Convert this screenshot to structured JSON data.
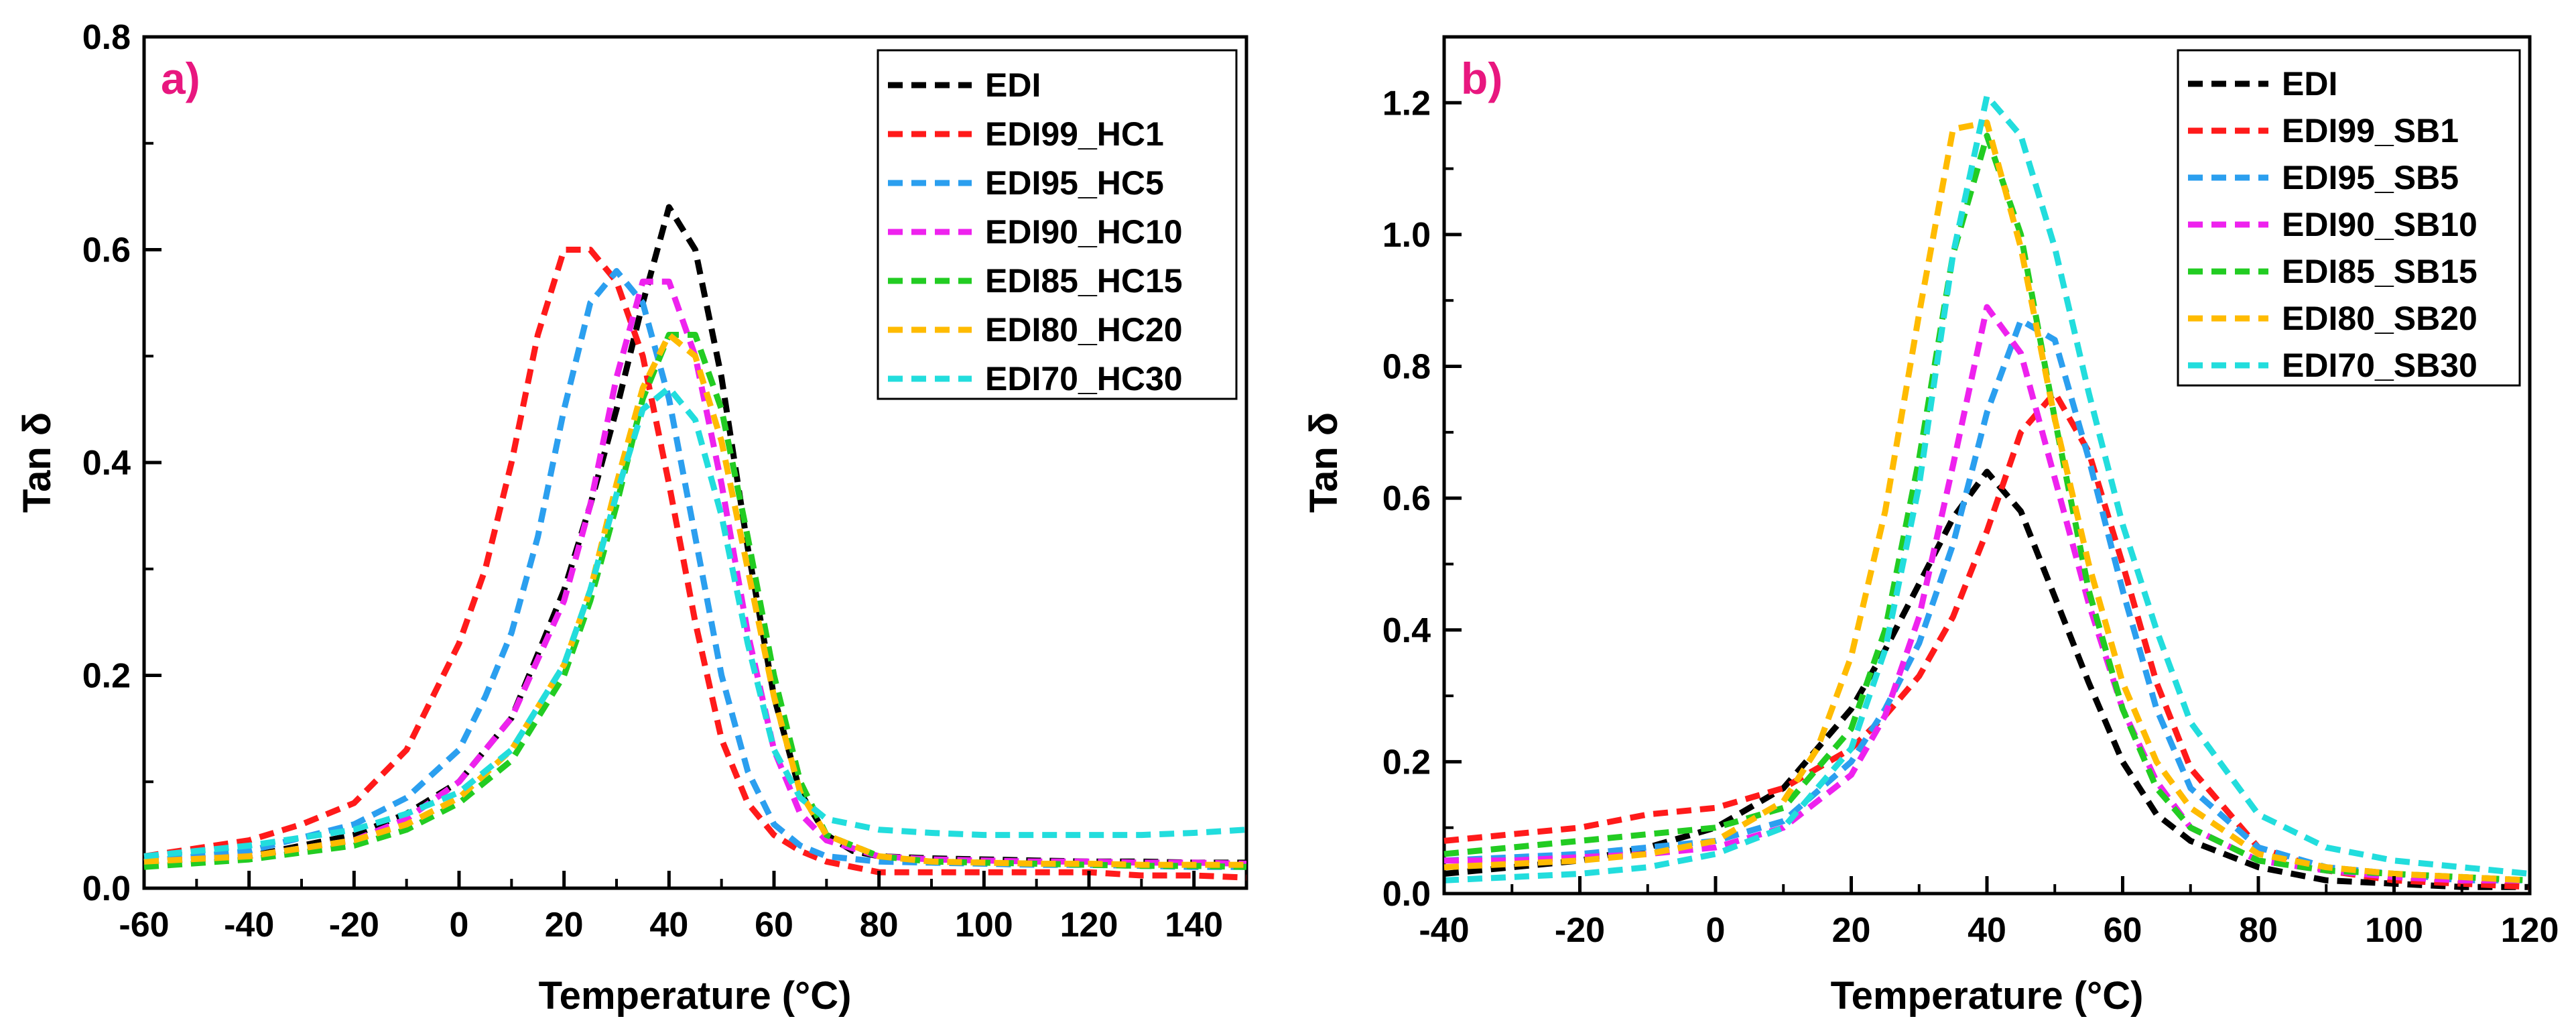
{
  "colors": {
    "panel_label": "#e8177f",
    "EDI": "#000000",
    "red": "#ff1a1a",
    "blue": "#2b9fef",
    "magenta": "#ee22ee",
    "green": "#22cc22",
    "orange": "#ffbb00",
    "cyan": "#22dddd"
  },
  "chart_data": [
    {
      "type": "line",
      "panel": "a)",
      "xlabel": "Temperature (°C)",
      "ylabel": "Tan δ",
      "xlim": [
        -60,
        150
      ],
      "ylim": [
        0,
        0.8
      ],
      "xticks": [
        "-60",
        "-40",
        "-20",
        "0",
        "20",
        "40",
        "60",
        "80",
        "100",
        "120",
        "140"
      ],
      "yticks": [
        "0.0",
        "0.2",
        "0.4",
        "0.6",
        "0.8"
      ],
      "legend_position": "top-right",
      "series": [
        {
          "name": "EDI",
          "color_key": "EDI",
          "x": [
            -60,
            -40,
            -20,
            -10,
            0,
            10,
            20,
            25,
            30,
            35,
            40,
            45,
            50,
            55,
            60,
            65,
            70,
            75,
            80,
            90,
            100,
            110,
            120,
            130,
            140,
            150
          ],
          "y": [
            0.025,
            0.03,
            0.05,
            0.07,
            0.1,
            0.16,
            0.28,
            0.36,
            0.45,
            0.55,
            0.64,
            0.6,
            0.48,
            0.32,
            0.18,
            0.09,
            0.05,
            0.035,
            0.03,
            0.028,
            0.027,
            0.026,
            0.025,
            0.025,
            0.024,
            0.024
          ]
        },
        {
          "name": "EDI99_HC1",
          "color_key": "red",
          "x": [
            -60,
            -40,
            -30,
            -20,
            -10,
            0,
            5,
            10,
            15,
            20,
            25,
            30,
            35,
            40,
            45,
            50,
            55,
            60,
            65,
            70,
            75,
            80,
            90,
            100,
            110,
            120,
            130,
            140,
            150
          ],
          "y": [
            0.03,
            0.045,
            0.06,
            0.08,
            0.13,
            0.23,
            0.3,
            0.4,
            0.52,
            0.6,
            0.6,
            0.57,
            0.5,
            0.38,
            0.25,
            0.14,
            0.08,
            0.05,
            0.035,
            0.025,
            0.02,
            0.015,
            0.015,
            0.015,
            0.015,
            0.015,
            0.012,
            0.012,
            0.01
          ]
        },
        {
          "name": "EDI95_HC5",
          "color_key": "blue",
          "x": [
            -60,
            -40,
            -20,
            -10,
            0,
            5,
            10,
            15,
            20,
            25,
            30,
            35,
            40,
            45,
            50,
            55,
            60,
            65,
            70,
            80,
            90,
            100,
            110,
            120,
            130,
            140,
            150
          ],
          "y": [
            0.025,
            0.035,
            0.06,
            0.085,
            0.13,
            0.18,
            0.24,
            0.33,
            0.45,
            0.55,
            0.58,
            0.55,
            0.46,
            0.33,
            0.2,
            0.11,
            0.06,
            0.04,
            0.03,
            0.025,
            0.024,
            0.023,
            0.022,
            0.022,
            0.021,
            0.02,
            0.02
          ]
        },
        {
          "name": "EDI90_HC10",
          "color_key": "magenta",
          "x": [
            -60,
            -40,
            -20,
            -10,
            0,
            10,
            20,
            25,
            30,
            35,
            40,
            45,
            50,
            55,
            60,
            65,
            70,
            80,
            90,
            100,
            110,
            120,
            130,
            140,
            150
          ],
          "y": [
            0.025,
            0.03,
            0.045,
            0.065,
            0.1,
            0.16,
            0.27,
            0.36,
            0.48,
            0.57,
            0.57,
            0.5,
            0.38,
            0.24,
            0.13,
            0.07,
            0.045,
            0.03,
            0.027,
            0.026,
            0.025,
            0.025,
            0.024,
            0.024,
            0.023
          ]
        },
        {
          "name": "EDI85_HC15",
          "color_key": "green",
          "x": [
            -60,
            -40,
            -20,
            -10,
            0,
            10,
            20,
            25,
            30,
            35,
            40,
            45,
            50,
            55,
            60,
            65,
            70,
            80,
            90,
            100,
            110,
            120,
            130,
            140,
            150
          ],
          "y": [
            0.02,
            0.027,
            0.04,
            0.055,
            0.08,
            0.12,
            0.2,
            0.27,
            0.36,
            0.46,
            0.52,
            0.52,
            0.45,
            0.33,
            0.2,
            0.1,
            0.05,
            0.03,
            0.025,
            0.024,
            0.023,
            0.022,
            0.021,
            0.021,
            0.02
          ]
        },
        {
          "name": "EDI80_HC20",
          "color_key": "orange",
          "x": [
            -60,
            -40,
            -20,
            -10,
            0,
            10,
            20,
            25,
            30,
            35,
            40,
            45,
            50,
            55,
            60,
            65,
            70,
            80,
            90,
            100,
            110,
            120,
            130,
            140,
            150
          ],
          "y": [
            0.025,
            0.03,
            0.045,
            0.06,
            0.085,
            0.13,
            0.21,
            0.28,
            0.38,
            0.47,
            0.52,
            0.5,
            0.42,
            0.3,
            0.18,
            0.09,
            0.05,
            0.03,
            0.025,
            0.024,
            0.023,
            0.023,
            0.022,
            0.022,
            0.022
          ]
        },
        {
          "name": "EDI70_HC30",
          "color_key": "cyan",
          "x": [
            -60,
            -40,
            -20,
            -10,
            0,
            10,
            20,
            25,
            30,
            35,
            40,
            45,
            50,
            55,
            60,
            65,
            70,
            80,
            90,
            100,
            110,
            120,
            130,
            140,
            150
          ],
          "y": [
            0.03,
            0.04,
            0.055,
            0.07,
            0.09,
            0.13,
            0.21,
            0.28,
            0.37,
            0.45,
            0.47,
            0.44,
            0.35,
            0.23,
            0.13,
            0.085,
            0.065,
            0.055,
            0.052,
            0.05,
            0.05,
            0.05,
            0.05,
            0.052,
            0.055
          ]
        }
      ]
    },
    {
      "type": "line",
      "panel": "b)",
      "xlabel": "Temperature (°C)",
      "ylabel": "Tan δ",
      "xlim": [
        -40,
        120
      ],
      "ylim": [
        0,
        1.3
      ],
      "xticks": [
        "-40",
        "-20",
        "0",
        "20",
        "40",
        "60",
        "80",
        "100",
        "120"
      ],
      "yticks": [
        "0.0",
        "0.2",
        "0.4",
        "0.6",
        "0.8",
        "1.0",
        "1.2"
      ],
      "legend_position": "top-right",
      "series": [
        {
          "name": "EDI",
          "color_key": "EDI",
          "x": [
            -40,
            -30,
            -20,
            -10,
            0,
            10,
            20,
            25,
            30,
            35,
            40,
            45,
            50,
            55,
            60,
            65,
            70,
            80,
            90,
            100,
            110,
            120
          ],
          "y": [
            0.03,
            0.04,
            0.05,
            0.07,
            0.1,
            0.16,
            0.28,
            0.37,
            0.47,
            0.57,
            0.64,
            0.58,
            0.45,
            0.32,
            0.2,
            0.12,
            0.08,
            0.04,
            0.02,
            0.015,
            0.01,
            0.01
          ]
        },
        {
          "name": "EDI99_SB1",
          "color_key": "red",
          "x": [
            -40,
            -30,
            -20,
            -10,
            0,
            10,
            20,
            25,
            30,
            35,
            40,
            45,
            50,
            55,
            60,
            65,
            70,
            80,
            90,
            100,
            110,
            120
          ],
          "y": [
            0.08,
            0.09,
            0.1,
            0.12,
            0.13,
            0.16,
            0.22,
            0.27,
            0.33,
            0.42,
            0.55,
            0.7,
            0.76,
            0.67,
            0.5,
            0.32,
            0.19,
            0.07,
            0.035,
            0.02,
            0.015,
            0.01
          ]
        },
        {
          "name": "EDI95_SB5",
          "color_key": "blue",
          "x": [
            -40,
            -30,
            -20,
            -10,
            0,
            10,
            20,
            25,
            30,
            35,
            40,
            45,
            50,
            55,
            60,
            65,
            70,
            80,
            90,
            100,
            110,
            120
          ],
          "y": [
            0.05,
            0.055,
            0.06,
            0.07,
            0.08,
            0.11,
            0.2,
            0.28,
            0.38,
            0.53,
            0.73,
            0.87,
            0.84,
            0.66,
            0.46,
            0.28,
            0.16,
            0.07,
            0.04,
            0.03,
            0.02,
            0.02
          ]
        },
        {
          "name": "EDI90_SB10",
          "color_key": "magenta",
          "x": [
            -40,
            -30,
            -20,
            -10,
            0,
            10,
            20,
            25,
            30,
            35,
            40,
            45,
            50,
            55,
            60,
            65,
            70,
            80,
            90,
            100,
            110,
            120
          ],
          "y": [
            0.05,
            0.05,
            0.055,
            0.06,
            0.07,
            0.1,
            0.18,
            0.27,
            0.42,
            0.65,
            0.89,
            0.82,
            0.63,
            0.44,
            0.28,
            0.17,
            0.1,
            0.05,
            0.035,
            0.025,
            0.02,
            0.02
          ]
        },
        {
          "name": "EDI85_SB15",
          "color_key": "green",
          "x": [
            -40,
            -30,
            -20,
            -10,
            0,
            10,
            20,
            25,
            30,
            35,
            40,
            45,
            50,
            55,
            60,
            65,
            70,
            80,
            90,
            100,
            110,
            120
          ],
          "y": [
            0.06,
            0.07,
            0.08,
            0.09,
            0.1,
            0.13,
            0.25,
            0.4,
            0.66,
            0.97,
            1.15,
            1.0,
            0.72,
            0.46,
            0.28,
            0.16,
            0.1,
            0.05,
            0.035,
            0.03,
            0.025,
            0.02
          ]
        },
        {
          "name": "EDI80_SB20",
          "color_key": "orange",
          "x": [
            -40,
            -30,
            -20,
            -10,
            0,
            10,
            15,
            20,
            25,
            30,
            35,
            40,
            45,
            50,
            55,
            60,
            65,
            70,
            80,
            90,
            100,
            110,
            120
          ],
          "y": [
            0.04,
            0.045,
            0.05,
            0.06,
            0.08,
            0.14,
            0.22,
            0.36,
            0.58,
            0.88,
            1.16,
            1.17,
            0.98,
            0.72,
            0.5,
            0.32,
            0.2,
            0.13,
            0.06,
            0.04,
            0.03,
            0.025,
            0.02
          ]
        },
        {
          "name": "EDI70_SB30",
          "color_key": "cyan",
          "x": [
            -40,
            -30,
            -20,
            -10,
            0,
            10,
            20,
            25,
            30,
            35,
            40,
            45,
            50,
            55,
            60,
            65,
            70,
            80,
            90,
            100,
            110,
            120
          ],
          "y": [
            0.02,
            0.025,
            0.03,
            0.04,
            0.06,
            0.1,
            0.22,
            0.37,
            0.62,
            0.97,
            1.21,
            1.15,
            0.98,
            0.76,
            0.56,
            0.4,
            0.26,
            0.12,
            0.07,
            0.05,
            0.04,
            0.03
          ]
        }
      ]
    }
  ]
}
